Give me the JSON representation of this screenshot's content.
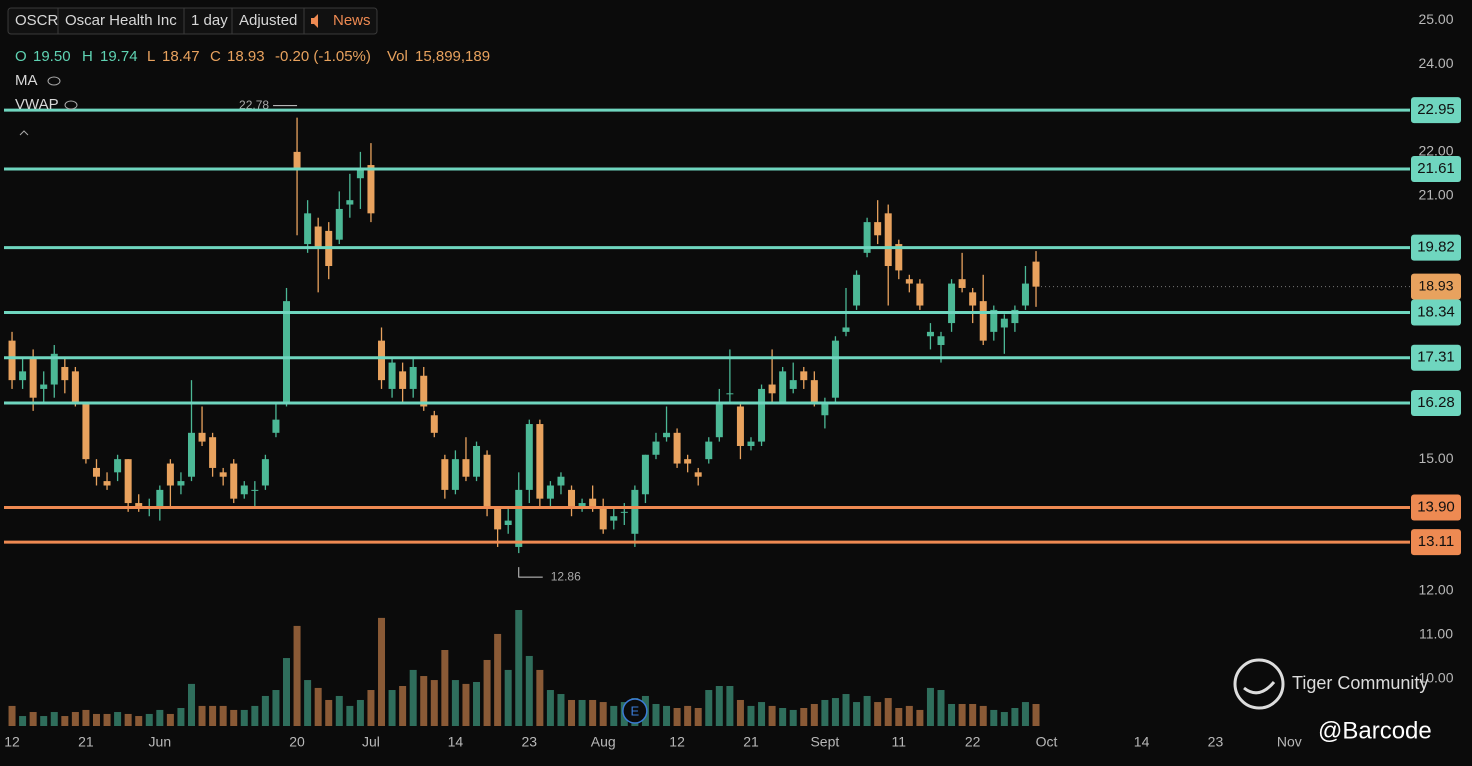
{
  "header": {
    "symbol": "OSCR",
    "name": "Oscar Health Inc",
    "interval": "1 day",
    "adjustment": "Adjusted",
    "news": "News"
  },
  "quote": {
    "o_label": "O",
    "open": "19.50",
    "h_label": "H",
    "high": "19.74",
    "l_label": "L",
    "low": "18.47",
    "c_label": "C",
    "close": "18.93",
    "change": "-0.20 (-1.05%)",
    "vol_label": "Vol",
    "volume": "15,899,189"
  },
  "indicators": [
    "MA",
    "VWAP"
  ],
  "watermark": {
    "brand": "Tiger Community",
    "author": "@Barcode"
  },
  "chart_data": {
    "type": "candlestick",
    "up_color": "#4cb896",
    "down_color": "#e8a25e",
    "open": [
      17.7,
      16.8,
      17.3,
      16.6,
      16.7,
      17.1,
      17.0,
      16.3,
      14.8,
      14.5,
      14.7,
      15.0,
      14.0,
      13.9,
      13.9,
      14.9,
      14.4,
      14.6,
      15.6,
      15.5,
      14.7,
      14.9,
      14.2,
      14.3,
      14.4,
      15.6,
      16.3,
      22.0,
      19.9,
      20.3,
      20.2,
      20.0,
      20.8,
      21.4,
      21.7,
      17.7,
      16.6,
      17.0,
      16.6,
      16.9,
      16.0,
      15.0,
      14.3,
      15.0,
      14.6,
      15.1,
      13.9,
      13.5,
      13.0,
      14.3,
      15.8,
      14.1,
      14.4,
      14.3,
      13.9,
      14.1,
      13.9,
      13.6,
      13.8,
      13.3,
      14.2,
      15.1,
      15.5,
      15.6,
      15.0,
      14.7,
      15.0,
      15.5,
      16.5,
      16.2,
      15.3,
      15.4,
      16.7,
      16.3,
      16.6,
      17.0,
      16.8,
      16.0,
      16.4,
      17.9,
      18.5,
      19.7,
      20.4,
      20.6,
      19.9,
      19.1,
      19.0,
      17.8,
      17.6,
      18.1,
      19.1,
      18.8,
      18.6,
      17.9,
      18.0,
      18.1,
      18.5,
      19.5
    ],
    "high": [
      17.9,
      17.3,
      17.5,
      17.0,
      17.6,
      17.3,
      17.1,
      16.3,
      15.0,
      14.7,
      15.1,
      15.0,
      14.2,
      14.1,
      14.4,
      15.0,
      14.7,
      16.8,
      16.2,
      15.6,
      14.8,
      15.0,
      14.5,
      14.5,
      15.1,
      16.3,
      18.9,
      22.78,
      20.9,
      20.5,
      20.4,
      21.1,
      21.5,
      22.0,
      22.2,
      18.0,
      17.3,
      17.2,
      17.3,
      17.1,
      16.1,
      15.1,
      15.2,
      15.5,
      15.4,
      15.2,
      13.9,
      13.9,
      14.7,
      15.9,
      15.9,
      14.5,
      14.7,
      14.4,
      14.1,
      14.4,
      14.1,
      13.9,
      14.0,
      14.4,
      15.1,
      15.6,
      16.2,
      15.7,
      15.1,
      14.8,
      15.5,
      16.6,
      17.5,
      16.3,
      15.5,
      16.7,
      17.5,
      17.1,
      17.2,
      17.1,
      17.0,
      16.4,
      17.8,
      18.9,
      19.3,
      20.5,
      20.9,
      20.8,
      20.0,
      19.2,
      19.1,
      18.1,
      17.9,
      19.1,
      19.7,
      18.9,
      19.2,
      18.5,
      18.3,
      18.5,
      19.4,
      19.74
    ],
    "low": [
      16.6,
      16.6,
      16.1,
      16.3,
      16.4,
      16.5,
      16.2,
      14.9,
      14.4,
      14.3,
      14.5,
      13.8,
      13.8,
      13.7,
      13.6,
      13.9,
      14.2,
      14.5,
      15.3,
      14.6,
      14.4,
      14.0,
      14.1,
      13.9,
      14.3,
      15.5,
      16.2,
      20.1,
      19.7,
      18.8,
      19.1,
      19.9,
      20.5,
      20.7,
      20.4,
      16.6,
      16.4,
      16.3,
      16.4,
      16.1,
      15.5,
      14.1,
      14.2,
      14.5,
      14.5,
      13.7,
      13.0,
      13.3,
      12.86,
      14.0,
      13.9,
      13.9,
      14.2,
      13.7,
      13.8,
      13.8,
      13.3,
      13.4,
      13.5,
      13.0,
      14.0,
      15.0,
      15.4,
      14.8,
      14.7,
      14.4,
      14.9,
      15.4,
      16.3,
      15.0,
      15.2,
      15.3,
      16.3,
      16.3,
      16.5,
      16.6,
      16.2,
      15.7,
      16.3,
      17.8,
      18.4,
      19.6,
      19.9,
      18.5,
      19.1,
      18.8,
      18.4,
      17.5,
      17.2,
      17.9,
      18.8,
      18.1,
      17.6,
      17.7,
      17.4,
      17.9,
      18.4,
      18.47
    ],
    "close": [
      16.8,
      17.0,
      16.4,
      16.7,
      17.4,
      16.8,
      16.3,
      15.0,
      14.6,
      14.4,
      15.0,
      14.0,
      13.9,
      13.9,
      14.3,
      14.4,
      14.5,
      15.6,
      15.4,
      14.8,
      14.6,
      14.1,
      14.4,
      14.3,
      15.0,
      15.9,
      18.6,
      21.6,
      20.6,
      19.8,
      19.4,
      20.7,
      20.9,
      21.6,
      20.6,
      16.8,
      17.2,
      16.6,
      17.1,
      16.2,
      15.6,
      14.3,
      15.0,
      14.6,
      15.3,
      13.9,
      13.4,
      13.6,
      14.3,
      15.8,
      14.1,
      14.4,
      14.6,
      13.9,
      14.0,
      13.9,
      13.4,
      13.7,
      13.8,
      14.3,
      15.1,
      15.4,
      15.6,
      14.9,
      14.9,
      14.6,
      15.4,
      16.3,
      16.5,
      15.3,
      15.4,
      16.6,
      16.5,
      17.0,
      16.8,
      16.8,
      16.3,
      16.3,
      17.7,
      18.0,
      19.2,
      20.4,
      20.1,
      19.4,
      19.3,
      19.0,
      18.5,
      17.9,
      17.8,
      19.0,
      18.9,
      18.5,
      17.7,
      18.4,
      18.2,
      18.4,
      19.0,
      18.93
    ],
    "volume": [
      14500000,
      7200000,
      10100000,
      7200000,
      10100000,
      7200000,
      10100000,
      11600000,
      8700000,
      8700000,
      10100000,
      8700000,
      7200000,
      8700000,
      11600000,
      8700000,
      13000000,
      30400000,
      14500000,
      14500000,
      14500000,
      11600000,
      11600000,
      14500000,
      21700000,
      26000000,
      49100000,
      72300000,
      33200000,
      27500000,
      18800000,
      21700000,
      14500000,
      18800000,
      26000000,
      78100000,
      26000000,
      28900000,
      40500000,
      36100000,
      33200000,
      54900000,
      33200000,
      30400000,
      31800000,
      47700000,
      66500000,
      40500000,
      83800000,
      50600000,
      40500000,
      26000000,
      23100000,
      18800000,
      18800000,
      18800000,
      17300000,
      14500000,
      17300000,
      20200000,
      21700000,
      15900000,
      14500000,
      13000000,
      14500000,
      13000000,
      26000000,
      28900000,
      28900000,
      18800000,
      14500000,
      17300000,
      14500000,
      13000000,
      11600000,
      13000000,
      15900000,
      18800000,
      20200000,
      23100000,
      17300000,
      21700000,
      17300000,
      20200000,
      13000000,
      14500000,
      11600000,
      27500000,
      26000000,
      15900000,
      15900000,
      15900000,
      14500000,
      11600000,
      10100000,
      13000000,
      17300000,
      15899189
    ],
    "ylim": [
      8.83,
      25.46
    ],
    "yticks": [
      {
        "value": 25,
        "label": "25.00"
      },
      {
        "value": 24,
        "label": "24.00"
      },
      {
        "value": 22,
        "label": "22.00"
      },
      {
        "value": 21,
        "label": "21.00"
      },
      {
        "value": 15,
        "label": "15.00"
      },
      {
        "value": 12,
        "label": "12.00"
      },
      {
        "value": 11,
        "label": "11.00"
      },
      {
        "value": 10,
        "label": "10.00"
      }
    ],
    "xlim": [
      -1.14,
      131.48
    ],
    "xticks": [
      {
        "value": 0,
        "label": "12"
      },
      {
        "value": 7,
        "label": "21"
      },
      {
        "value": 14,
        "label": "Jun"
      },
      {
        "value": 27,
        "label": "20"
      },
      {
        "value": 34,
        "label": "Jul"
      },
      {
        "value": 42,
        "label": "14"
      },
      {
        "value": 49,
        "label": "23"
      },
      {
        "value": 56,
        "label": "Aug"
      },
      {
        "value": 63,
        "label": "12"
      },
      {
        "value": 70,
        "label": "21"
      },
      {
        "value": 77,
        "label": "Sept"
      },
      {
        "value": 84,
        "label": "11"
      },
      {
        "value": 91,
        "label": "22"
      },
      {
        "value": 98,
        "label": "Oct"
      },
      {
        "value": 107,
        "label": "14"
      },
      {
        "value": 114,
        "label": "23"
      },
      {
        "value": 121,
        "label": "Nov"
      }
    ],
    "levels": [
      {
        "value": 22.95,
        "color": "#6fd6bf"
      },
      {
        "value": 21.61,
        "color": "#6fd6bf"
      },
      {
        "value": 19.82,
        "color": "#6fd6bf"
      },
      {
        "value": 18.34,
        "color": "#6fd6bf"
      },
      {
        "value": 17.31,
        "color": "#6fd6bf"
      },
      {
        "value": 16.28,
        "color": "#6fd6bf"
      },
      {
        "value": 13.9,
        "label": "13.90",
        "color": "#ee8a52"
      },
      {
        "value": 13.11,
        "color": "#ee8a52"
      }
    ],
    "events": [
      {
        "x": 59,
        "label": "E"
      }
    ]
  }
}
